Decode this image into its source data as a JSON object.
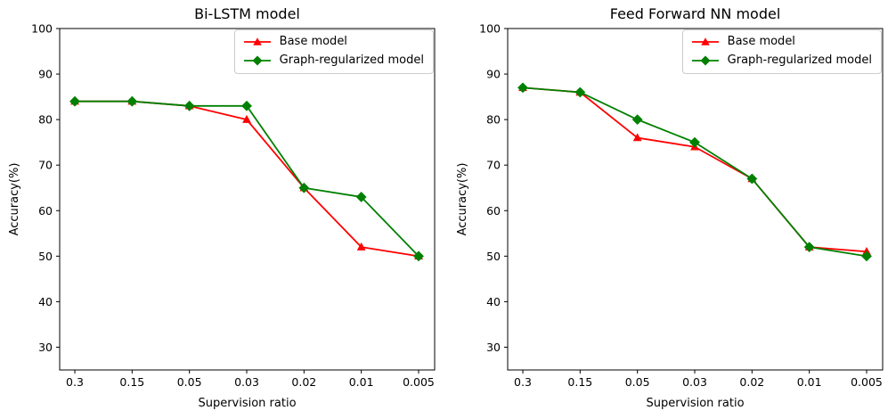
{
  "figure": {
    "background": "#ffffff"
  },
  "legend": {
    "entries": [
      "Base model",
      "Graph-regularized model"
    ]
  },
  "colors": {
    "base_model": "#ff0000",
    "graph_regularized_model": "#008000",
    "spine": "#000000",
    "legend_border": "#cccccc"
  },
  "chart_data": [
    {
      "type": "line",
      "title": "Bi-LSTM model",
      "xlabel": "Supervision ratio",
      "ylabel": "Accuracy(%)",
      "categories": [
        "0.3",
        "0.15",
        "0.05",
        "0.03",
        "0.02",
        "0.01",
        "0.005"
      ],
      "yticks": [
        30,
        40,
        50,
        60,
        70,
        80,
        90,
        100
      ],
      "ylim": [
        25,
        100
      ],
      "grid": false,
      "legend_position": "upper right",
      "series": [
        {
          "name": "Base model",
          "color": "#ff0000",
          "marker": "triangle",
          "values": [
            84,
            84,
            83,
            80,
            65,
            52,
            50
          ]
        },
        {
          "name": "Graph-regularized model",
          "color": "#008000",
          "marker": "diamond",
          "values": [
            84,
            84,
            83,
            83,
            65,
            63,
            50
          ]
        }
      ]
    },
    {
      "type": "line",
      "title": "Feed Forward NN model",
      "xlabel": "Supervision ratio",
      "ylabel": "Accuracy(%)",
      "categories": [
        "0.3",
        "0.15",
        "0.05",
        "0.03",
        "0.02",
        "0.01",
        "0.005"
      ],
      "yticks": [
        30,
        40,
        50,
        60,
        70,
        80,
        90,
        100
      ],
      "ylim": [
        25,
        100
      ],
      "grid": false,
      "legend_position": "upper right",
      "series": [
        {
          "name": "Base model",
          "color": "#ff0000",
          "marker": "triangle",
          "values": [
            87,
            86,
            76,
            74,
            67,
            52,
            51
          ]
        },
        {
          "name": "Graph-regularized model",
          "color": "#008000",
          "marker": "diamond",
          "values": [
            87,
            86,
            80,
            75,
            67,
            52,
            50
          ]
        }
      ]
    }
  ]
}
